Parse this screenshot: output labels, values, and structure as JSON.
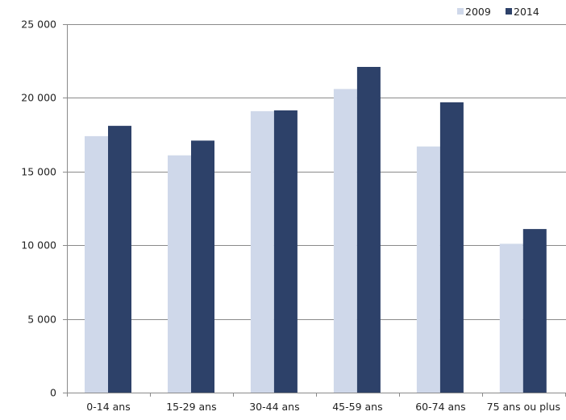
{
  "chart_data": {
    "type": "bar",
    "title": "",
    "xlabel": "",
    "ylabel": "",
    "categories": [
      "0-14 ans",
      "15-29 ans",
      "30-44 ans",
      "45-59 ans",
      "60-74 ans",
      "75 ans ou plus"
    ],
    "series": [
      {
        "name": "2009",
        "values": [
          17400,
          16100,
          19100,
          20600,
          16700,
          10100
        ],
        "color": "#cfd8ea"
      },
      {
        "name": "2014",
        "values": [
          18100,
          17100,
          19150,
          22100,
          19700,
          11100
        ],
        "color": "#2d4169"
      }
    ],
    "ylim": [
      0,
      25000
    ],
    "yticks": [
      0,
      5000,
      10000,
      15000,
      20000,
      25000
    ],
    "ytick_labels": [
      "0",
      "5 000",
      "10 000",
      "15 000",
      "20 000",
      "25 000"
    ],
    "grid": true,
    "legend_position": "top-right"
  }
}
